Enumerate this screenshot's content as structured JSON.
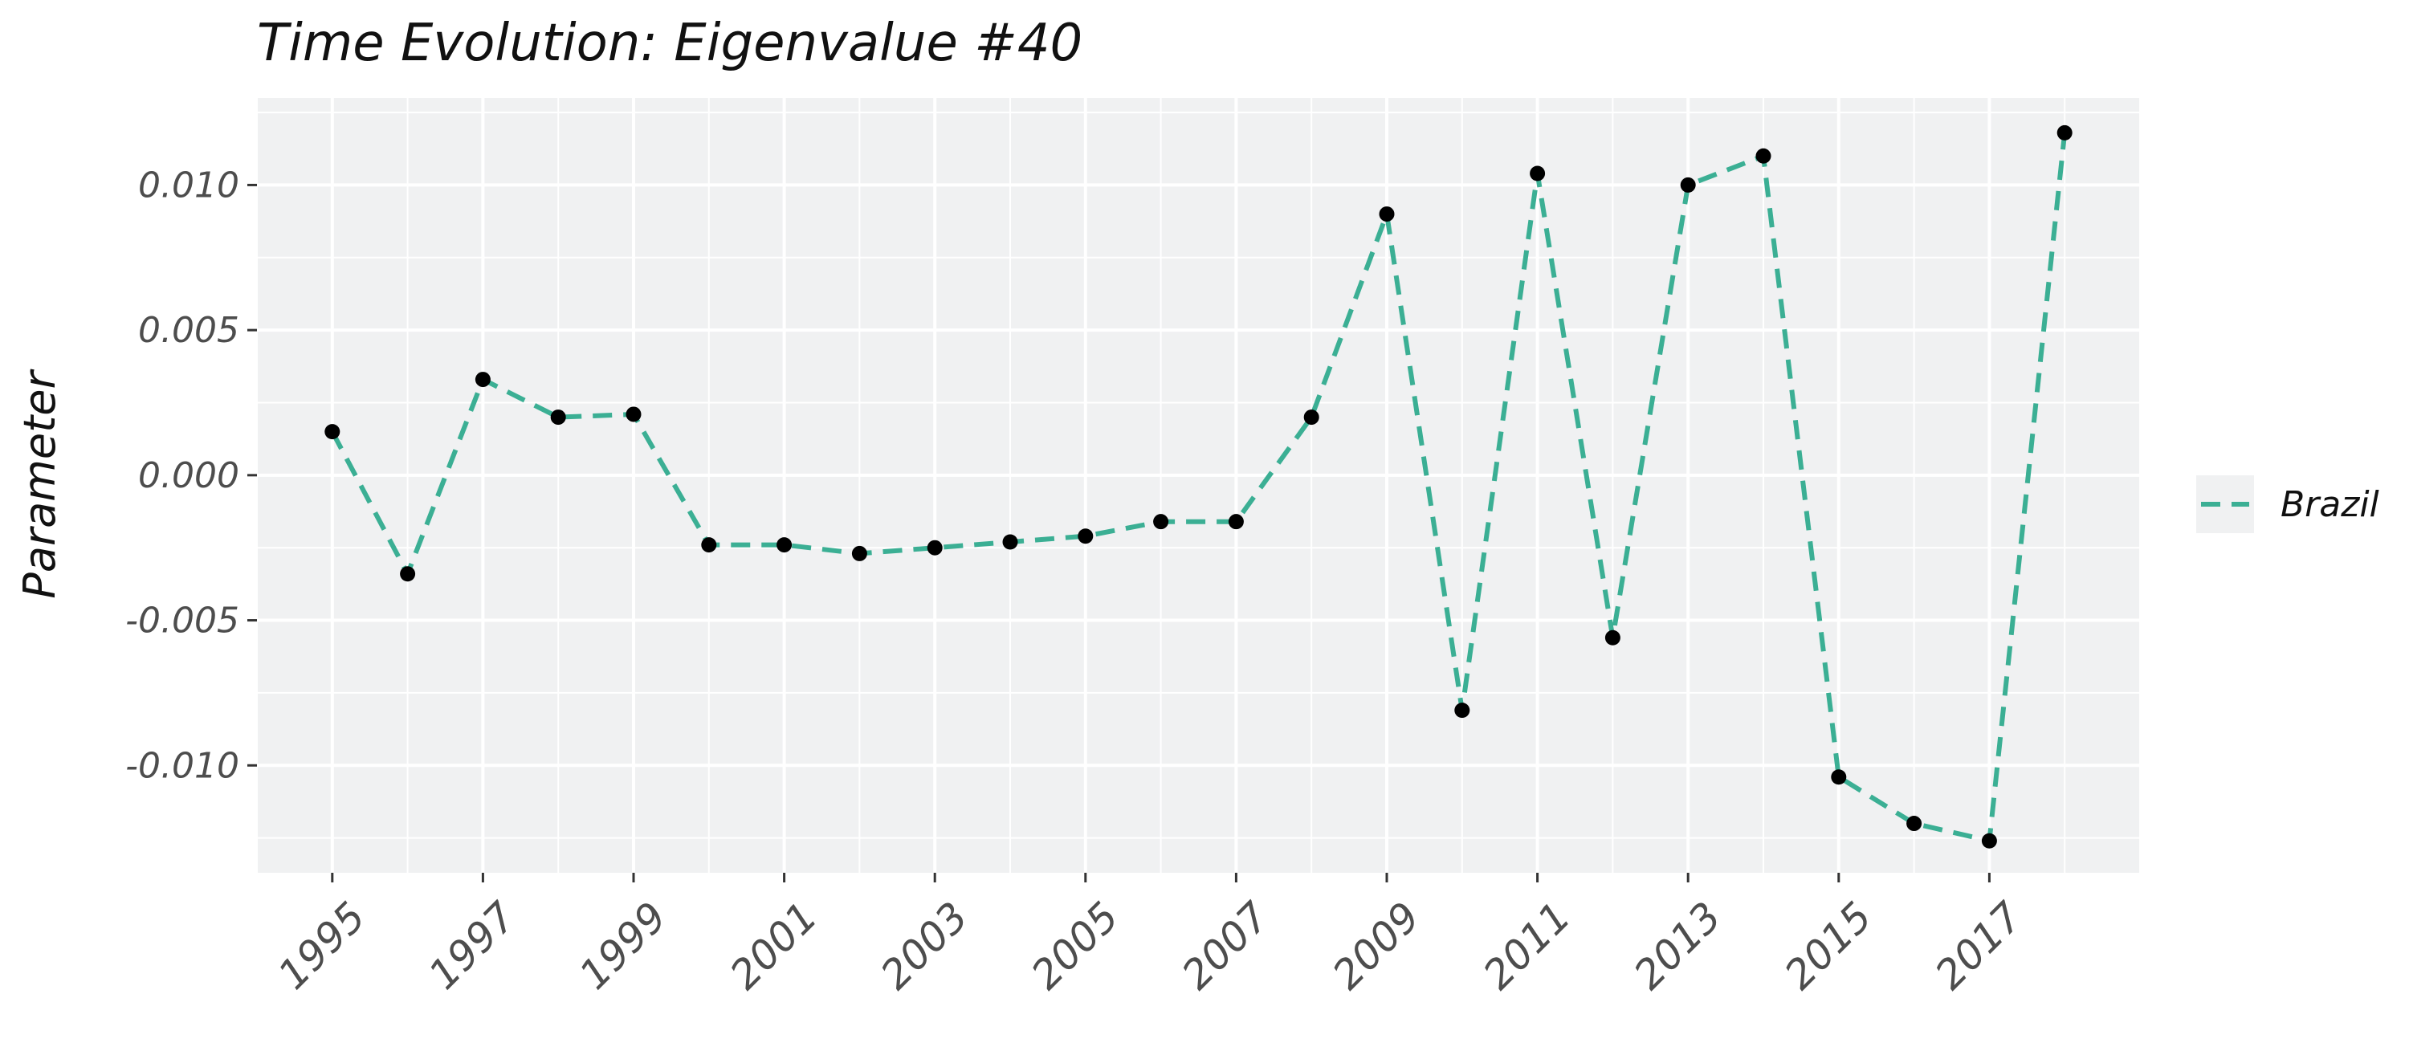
{
  "chart_data": {
    "type": "line",
    "title": "Time Evolution: Eigenvalue #40",
    "xlabel": "",
    "ylabel": "Parameter",
    "x": [
      1995,
      1996,
      1997,
      1998,
      1999,
      2000,
      2001,
      2002,
      2003,
      2004,
      2005,
      2006,
      2007,
      2008,
      2009,
      2010,
      2011,
      2012,
      2013,
      2014,
      2015,
      2016,
      2017,
      2018
    ],
    "series": [
      {
        "name": "Brazil",
        "color": "#3BAF94",
        "line_style": "dashed",
        "marker_color": "#000000",
        "values": [
          0.0015,
          -0.0034,
          0.0033,
          0.002,
          0.0021,
          -0.0024,
          -0.0024,
          -0.0027,
          -0.0025,
          -0.0023,
          -0.0021,
          -0.0016,
          -0.0016,
          0.002,
          0.009,
          -0.0081,
          0.0104,
          -0.0056,
          0.01,
          0.011,
          -0.0104,
          -0.012,
          -0.0126,
          0.0118
        ]
      }
    ],
    "xticks": [
      "1995",
      "1997",
      "1999",
      "2001",
      "2003",
      "2005",
      "2007",
      "2009",
      "2011",
      "2013",
      "2015",
      "2017"
    ],
    "yticks": [
      "0.010",
      "0.005",
      "0.000",
      "-0.005",
      "-0.010"
    ],
    "xlim": [
      1994,
      2019
    ],
    "ylim": [
      -0.0137,
      0.013
    ],
    "grid": true,
    "legend": "right"
  }
}
